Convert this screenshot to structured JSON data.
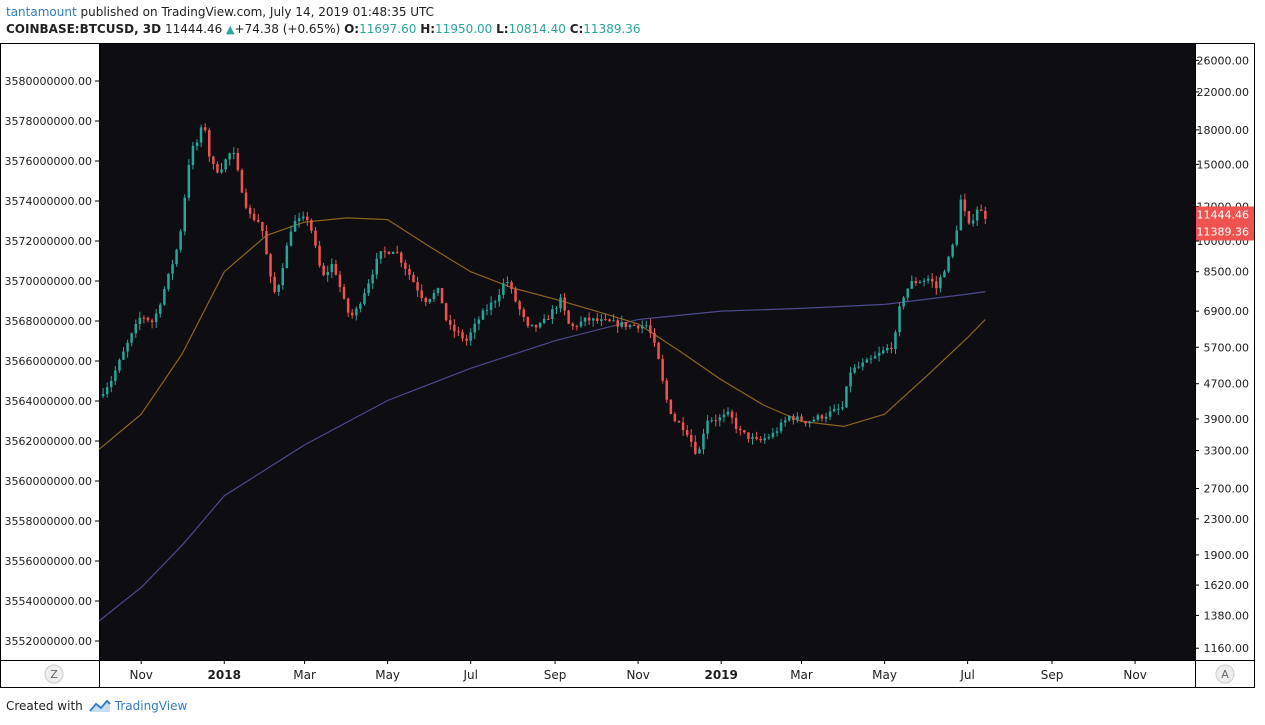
{
  "header": {
    "author": "tantamount",
    "published_text": "published on TradingView.com, July 14, 2019 01:48:35 UTC",
    "symbol": "COINBASE:BTCUSD, 3D",
    "last": "11444.46",
    "change": "+74.38 (+0.65%)",
    "open_label": "O:",
    "open": "11697.60",
    "high_label": "H:",
    "high": "11950.00",
    "low_label": "L:",
    "low": "10814.40",
    "close_label": "C:",
    "close": "11389.36"
  },
  "footer": {
    "created_with": "Created with",
    "brand": "TradingView"
  },
  "colors": {
    "background": "#0d0d12",
    "up": "#26a69a",
    "down": "#ef5350",
    "ma_short": "#8c6420",
    "ma_long": "#4c4a8c",
    "axis_text": "#1e1e1e",
    "price_label_bg": "#ef5350"
  },
  "chart_data": {
    "type": "candlestick",
    "left_axis_ticks": [
      "3580000000.00",
      "3578000000.00",
      "3576000000.00",
      "3574000000.00",
      "3572000000.00",
      "3570000000.00",
      "3568000000.00",
      "3566000000.00",
      "3564000000.00",
      "3562000000.00",
      "3560000000.00",
      "3558000000.00",
      "3556000000.00",
      "3554000000.00",
      "3552000000.00"
    ],
    "right_axis_scale": "log",
    "right_axis_ticks": [
      26000,
      22000,
      18000,
      15000,
      12000,
      10000,
      8500,
      6900,
      5700,
      4700,
      3900,
      3300,
      2700,
      2300,
      1900,
      1620,
      1380,
      1160
    ],
    "right_axis_tick_labels": [
      "26000.00",
      "22000.00",
      "18000.00",
      "15000.00",
      "12000.00",
      "10000.00",
      "8500.00",
      "6900.00",
      "5700.00",
      "4700.00",
      "3900.00",
      "3300.00",
      "2700.00",
      "2300.00",
      "1900.00",
      "1620.00",
      "1380.00",
      "1160.00"
    ],
    "right_axis_range": [
      1090,
      28500
    ],
    "price_labels": [
      "11444.46",
      "11389.36"
    ],
    "x_labels": [
      "Nov",
      "2018",
      "Mar",
      "May",
      "Jul",
      "Sep",
      "Nov",
      "2019",
      "Mar",
      "May",
      "Jul",
      "Sep",
      "Nov"
    ],
    "x_label_bold": [
      false,
      true,
      false,
      false,
      false,
      false,
      false,
      true,
      false,
      false,
      false,
      false,
      false
    ],
    "x_range": [
      "2017-10-01",
      "2019-12-15"
    ],
    "x_label_dates": [
      "2017-11-01",
      "2018-01-01",
      "2018-03-01",
      "2018-05-01",
      "2018-07-01",
      "2018-09-01",
      "2018-11-01",
      "2019-01-01",
      "2019-03-01",
      "2019-05-01",
      "2019-07-01",
      "2019-09-01",
      "2019-11-01"
    ],
    "z_button": "Z",
    "a_button": "A",
    "close_path": [
      [
        "2017-10-01",
        4400
      ],
      [
        "2017-10-10",
        4800
      ],
      [
        "2017-10-22",
        5800
      ],
      [
        "2017-11-01",
        6750
      ],
      [
        "2017-11-10",
        6500
      ],
      [
        "2017-11-20",
        8100
      ],
      [
        "2017-11-29",
        10000
      ],
      [
        "2017-12-07",
        16000
      ],
      [
        "2017-12-13",
        17000
      ],
      [
        "2017-12-17",
        19000
      ],
      [
        "2017-12-22",
        15000
      ],
      [
        "2017-12-28",
        14500
      ],
      [
        "2018-01-07",
        16200
      ],
      [
        "2018-01-13",
        13500
      ],
      [
        "2018-01-19",
        11500
      ],
      [
        "2018-01-28",
        11000
      ],
      [
        "2018-02-06",
        7500
      ],
      [
        "2018-02-10",
        8000
      ],
      [
        "2018-02-20",
        11000
      ],
      [
        "2018-03-04",
        11300
      ],
      [
        "2018-03-14",
        8200
      ],
      [
        "2018-03-22",
        8900
      ],
      [
        "2018-04-01",
        6900
      ],
      [
        "2018-04-06",
        6700
      ],
      [
        "2018-04-18",
        8200
      ],
      [
        "2018-04-25",
        9300
      ],
      [
        "2018-05-06",
        9600
      ],
      [
        "2018-05-15",
        8600
      ],
      [
        "2018-05-28",
        7300
      ],
      [
        "2018-06-08",
        7700
      ],
      [
        "2018-06-14",
        6400
      ],
      [
        "2018-06-28",
        5900
      ],
      [
        "2018-07-08",
        6700
      ],
      [
        "2018-07-20",
        7400
      ],
      [
        "2018-07-27",
        8200
      ],
      [
        "2018-08-02",
        7400
      ],
      [
        "2018-08-12",
        6300
      ],
      [
        "2018-08-22",
        6400
      ],
      [
        "2018-09-05",
        7300
      ],
      [
        "2018-09-12",
        6300
      ],
      [
        "2018-09-24",
        6600
      ],
      [
        "2018-10-10",
        6500
      ],
      [
        "2018-10-25",
        6400
      ],
      [
        "2018-11-08",
        6400
      ],
      [
        "2018-11-15",
        5500
      ],
      [
        "2018-11-21",
        4400
      ],
      [
        "2018-11-27",
        3900
      ],
      [
        "2018-12-06",
        3700
      ],
      [
        "2018-12-15",
        3200
      ],
      [
        "2018-12-21",
        3900
      ],
      [
        "2018-12-30",
        3900
      ],
      [
        "2019-01-07",
        4000
      ],
      [
        "2019-01-14",
        3650
      ],
      [
        "2019-01-28",
        3450
      ],
      [
        "2019-02-08",
        3600
      ],
      [
        "2019-02-20",
        3950
      ],
      [
        "2019-03-05",
        3850
      ],
      [
        "2019-03-20",
        4000
      ],
      [
        "2019-04-01",
        4150
      ],
      [
        "2019-04-05",
        5000
      ],
      [
        "2019-04-20",
        5300
      ],
      [
        "2019-05-08",
        5800
      ],
      [
        "2019-05-13",
        7300
      ],
      [
        "2019-05-20",
        8000
      ],
      [
        "2019-06-03",
        8200
      ],
      [
        "2019-06-08",
        7800
      ],
      [
        "2019-06-17",
        9100
      ],
      [
        "2019-06-22",
        10200
      ],
      [
        "2019-06-26",
        12400
      ],
      [
        "2019-07-02",
        10800
      ],
      [
        "2019-07-08",
        11900
      ],
      [
        "2019-07-14",
        11389
      ]
    ],
    "ma_short_path": [
      [
        "2017-10-01",
        3320
      ],
      [
        "2017-11-01",
        4000
      ],
      [
        "2017-12-01",
        5500
      ],
      [
        "2018-01-01",
        8500
      ],
      [
        "2018-02-01",
        10300
      ],
      [
        "2018-03-01",
        11050
      ],
      [
        "2018-04-01",
        11300
      ],
      [
        "2018-05-01",
        11200
      ],
      [
        "2018-06-01",
        9700
      ],
      [
        "2018-07-01",
        8500
      ],
      [
        "2018-08-01",
        7800
      ],
      [
        "2018-09-01",
        7350
      ],
      [
        "2018-10-01",
        6900
      ],
      [
        "2018-11-01",
        6450
      ],
      [
        "2018-12-01",
        5600
      ],
      [
        "2019-01-01",
        4800
      ],
      [
        "2019-02-01",
        4200
      ],
      [
        "2019-03-01",
        3850
      ],
      [
        "2019-04-01",
        3750
      ],
      [
        "2019-05-01",
        4000
      ],
      [
        "2019-06-01",
        4900
      ],
      [
        "2019-07-01",
        6000
      ],
      [
        "2019-07-14",
        6600
      ]
    ],
    "ma_long_path": [
      [
        "2017-10-01",
        1340
      ],
      [
        "2017-11-01",
        1600
      ],
      [
        "2017-12-01",
        2000
      ],
      [
        "2018-01-01",
        2600
      ],
      [
        "2018-03-01",
        3400
      ],
      [
        "2018-05-01",
        4300
      ],
      [
        "2018-07-01",
        5100
      ],
      [
        "2018-09-01",
        5900
      ],
      [
        "2018-11-01",
        6600
      ],
      [
        "2019-01-01",
        6900
      ],
      [
        "2019-03-01",
        7000
      ],
      [
        "2019-05-01",
        7150
      ],
      [
        "2019-07-01",
        7550
      ],
      [
        "2019-07-14",
        7650
      ]
    ]
  }
}
